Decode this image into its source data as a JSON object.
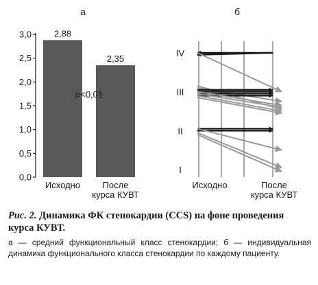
{
  "chart_data": [
    {
      "type": "bar",
      "panel_label": "а",
      "categories": [
        "Исходно",
        [
          "После",
          "курса КУВТ"
        ]
      ],
      "values": [
        2.88,
        2.35
      ],
      "data_labels": [
        "2,88",
        "2,35"
      ],
      "ylim": [
        0,
        3.0
      ],
      "yticks": [
        "0,0",
        "0,5",
        "1,0",
        "1,5",
        "2,0",
        "2,5",
        "3,0"
      ],
      "annotation": {
        "p": "р",
        "rest": "<0,01"
      },
      "bar_color": "#595959"
    },
    {
      "type": "line",
      "panel_label": "б",
      "y_categories": [
        "I",
        "II",
        "III",
        "IV"
      ],
      "x_categories": [
        "Исходно",
        [
          "После",
          "курса КУВТ"
        ]
      ],
      "series_colors": {
        "worse_or_same": "#1a1a1a",
        "improved": "#9a9a9a"
      },
      "patients": [
        {
          "from": 4.0,
          "to": 4.0,
          "color": "#1a1a1a"
        },
        {
          "from": 4.0,
          "to": 3.95,
          "color": "#1a1a1a"
        },
        {
          "from": 4.0,
          "to": 3.0,
          "color": "#9a9a9a"
        },
        {
          "from": 3.15,
          "to": 2.55,
          "color": "#9a9a9a"
        },
        {
          "from": 3.1,
          "to": 2.75,
          "color": "#9a9a9a"
        },
        {
          "from": 3.05,
          "to": 3.05,
          "color": "#1a1a1a"
        },
        {
          "from": 3.0,
          "to": 3.0,
          "color": "#1a1a1a"
        },
        {
          "from": 2.95,
          "to": 2.95,
          "color": "#1a1a1a"
        },
        {
          "from": 2.9,
          "to": 2.9,
          "color": "#1a1a1a"
        },
        {
          "from": 3.0,
          "to": 2.65,
          "color": "#9a9a9a"
        },
        {
          "from": 2.95,
          "to": 2.6,
          "color": "#9a9a9a"
        },
        {
          "from": 2.9,
          "to": 2.5,
          "color": "#9a9a9a"
        },
        {
          "from": 2.85,
          "to": 2.45,
          "color": "#9a9a9a"
        },
        {
          "from": 2.05,
          "to": 2.05,
          "color": "#1a1a1a"
        },
        {
          "from": 2.0,
          "to": 2.0,
          "color": "#1a1a1a"
        },
        {
          "from": 2.05,
          "to": 1.5,
          "color": "#9a9a9a"
        },
        {
          "from": 1.95,
          "to": 1.05,
          "color": "#9a9a9a"
        },
        {
          "from": 1.9,
          "to": 0.95,
          "color": "#9a9a9a"
        }
      ]
    }
  ],
  "caption": {
    "fig_label": "Рис. 2.",
    "title": "Динамика ФК стенокардии (CCS) на фоне проведения курса КУВТ.",
    "text": "а — средний функциональный класс стенокардии; б — индивидуальная динамика функционального класса стенокардии по каждому пациенту."
  }
}
